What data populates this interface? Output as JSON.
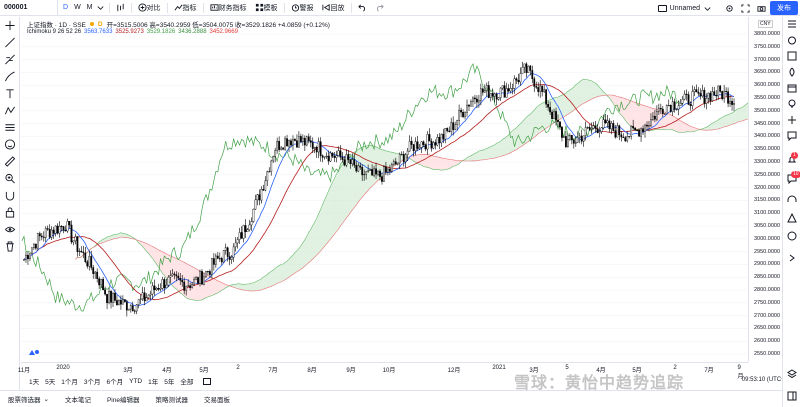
{
  "toolbar": {
    "symbol": "000001",
    "intervals": [
      "D",
      "W",
      "M"
    ],
    "timeframe_icon": "bar-chart-icon",
    "compare_label": "对比",
    "indicators_label": "指标",
    "financials_label": "财务指标",
    "template_label": "模板",
    "alert_label": "警报",
    "replay_label": "回放",
    "layout_name": "Unnamed",
    "publish_label": "发布"
  },
  "legend": {
    "symbol_name": "上证指数 · 1D · SSE",
    "ohlc": "开=3515.5006 高=3540.2959 低=3504.0075 收=3529.1826 +4.0859 (+0.12%)",
    "ichimoku_label": "Ichimoku 9 26 52 26",
    "ichimoku_values": [
      {
        "value": "3563.7633",
        "color": "#2962ff"
      },
      {
        "value": "3525.9273",
        "color": "#b71c1c"
      },
      {
        "value": "3529.1826",
        "color": "#43a047"
      },
      {
        "value": "3436.2888",
        "color": "#388e3c"
      },
      {
        "value": "3452.9669",
        "color": "#e53935"
      }
    ]
  },
  "price_axis": {
    "currency": "CNY",
    "labels": [
      "3800.0000",
      "3750.0000",
      "3700.0000",
      "3650.0000",
      "3600.0000",
      "3550.0000",
      "3500.0000",
      "3450.0000",
      "3400.0000",
      "3350.0000",
      "3300.0000",
      "3250.0000",
      "3200.0000",
      "3150.0000",
      "3100.0000",
      "3050.0000",
      "3000.0000",
      "2950.0000",
      "2900.0000",
      "2850.0000",
      "2800.0000",
      "2750.0000",
      "2700.0000",
      "2650.0000",
      "2600.0000",
      "2550.0000"
    ]
  },
  "time_axis": {
    "labels": [
      "11月",
      "2020",
      "3月",
      "4月",
      "5月",
      "2",
      "7月",
      "8月",
      "9月",
      "10月",
      "12月",
      "2021",
      "3月",
      "5",
      "4月",
      "5月",
      "2",
      "7月",
      "9月"
    ]
  },
  "range_bar": {
    "ranges": [
      "1天",
      "5天",
      "1个月",
      "3个月",
      "6个月",
      "YTD",
      "1年",
      "5年",
      "全部"
    ],
    "time_display": "09:53:10 (UTC+8)"
  },
  "bottom_tabs": [
    "股票筛选器",
    "文本笔记",
    "Pine编辑器",
    "策略测试器",
    "交易面板"
  ],
  "right_badges": {
    "alerts": "1",
    "notifications": "10"
  },
  "watermark": "雪球：黄怡中趋势追踪",
  "colors": {
    "accent": "#2962ff",
    "candle": "#000000",
    "tenkan": "#2962ff",
    "kijun": "#b71c1c",
    "chikou": "#43a047",
    "cloud_bull": "#c8e6c9",
    "cloud_bear": "#ffcdd2"
  },
  "chart_data": {
    "type": "line",
    "title": "上证指数 1D Ichimoku 9 26 52 26",
    "xlabel": "",
    "ylabel": "",
    "ylim": [
      2550,
      3800
    ],
    "x": [
      "2019-11",
      "2020-01",
      "2020-03",
      "2020-04",
      "2020-05",
      "2020-06",
      "2020-07",
      "2020-08",
      "2020-09",
      "2020-10",
      "2020-12",
      "2021-01",
      "2021-02",
      "2021-03",
      "2021-04",
      "2021-05",
      "2021-06",
      "2021-07"
    ],
    "series": [
      {
        "name": "Close",
        "values": [
          2920,
          3080,
          2750,
          2780,
          2850,
          2930,
          3350,
          3390,
          3240,
          3300,
          3420,
          3560,
          3650,
          3400,
          3420,
          3450,
          3580,
          3529
        ]
      }
    ]
  }
}
